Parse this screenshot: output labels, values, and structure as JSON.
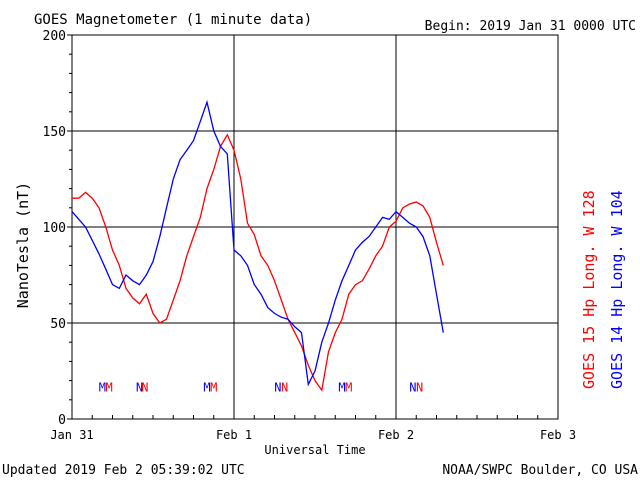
{
  "header": {
    "title": "GOES Magnetometer (1 minute data)",
    "begin": "Begin:  2019 Jan 31 0000 UTC"
  },
  "footer": {
    "updated": "Updated 2019 Feb  2 05:39:02 UTC",
    "source": "NOAA/SWPC Boulder, CO USA"
  },
  "colors": {
    "goes15": "#ff0000",
    "goes14": "#0000ff",
    "axis": "#000000",
    "grid": "#000000",
    "background": "#ffffff"
  },
  "chart_data": {
    "type": "line",
    "title": "GOES Magnetometer (1 minute data)",
    "xlabel": "Universal Time",
    "ylabel": "NanoTesla (nT)",
    "ylim": [
      0,
      200
    ],
    "xlim": [
      "2019-01-31 00:00",
      "2019-02-03 00:00"
    ],
    "x_ticks": [
      "Jan 31",
      "Feb 1",
      "Feb 2",
      "Feb 3"
    ],
    "y_ticks": [
      0,
      50,
      100,
      150,
      200
    ],
    "grid": true,
    "legend": [
      {
        "name": "GOES 15 Hp  Long. W 128",
        "color": "#ff0000"
      },
      {
        "name": "GOES 14 Hp  Long. W 104",
        "color": "#0000ff"
      }
    ],
    "series": [
      {
        "name": "GOES 15 Hp  Long. W 128",
        "color": "#ff0000",
        "x_hours": [
          0,
          1,
          2,
          3,
          4,
          5,
          6,
          7,
          8,
          9,
          10,
          11,
          12,
          13,
          14,
          15,
          16,
          17,
          18,
          19,
          20,
          21,
          22,
          23,
          24,
          25,
          26,
          27,
          28,
          29,
          30,
          31,
          32,
          33,
          34,
          35,
          36,
          37,
          38,
          39,
          40,
          41,
          42,
          43,
          44,
          45,
          46,
          47,
          48,
          49,
          50,
          51,
          52,
          53,
          54,
          55
        ],
        "values": [
          115,
          115,
          118,
          115,
          110,
          100,
          88,
          80,
          68,
          63,
          60,
          65,
          55,
          50,
          52,
          62,
          72,
          85,
          95,
          105,
          120,
          130,
          142,
          148,
          140,
          125,
          102,
          96,
          85,
          80,
          72,
          62,
          52,
          45,
          38,
          28,
          20,
          15,
          35,
          45,
          52,
          65,
          70,
          72,
          78,
          85,
          90,
          100,
          103,
          110,
          112,
          113,
          111,
          105,
          92,
          80
        ]
      },
      {
        "name": "GOES 14 Hp  Long. W 104",
        "color": "#0000ff",
        "x_hours": [
          0,
          1,
          2,
          3,
          4,
          5,
          6,
          7,
          8,
          9,
          10,
          11,
          12,
          13,
          14,
          15,
          16,
          17,
          18,
          19,
          20,
          21,
          22,
          23,
          24,
          25,
          26,
          27,
          28,
          29,
          30,
          31,
          32,
          33,
          34,
          35,
          36,
          37,
          38,
          39,
          40,
          41,
          42,
          43,
          44,
          45,
          46,
          47,
          48,
          49,
          50,
          51,
          52,
          53,
          54,
          55
        ],
        "values": [
          108,
          104,
          100,
          93,
          86,
          78,
          70,
          68,
          75,
          72,
          70,
          75,
          82,
          95,
          110,
          125,
          135,
          140,
          145,
          155,
          165,
          150,
          142,
          138,
          88,
          85,
          80,
          70,
          65,
          58,
          55,
          53,
          52,
          48,
          45,
          18,
          25,
          40,
          50,
          62,
          72,
          80,
          88,
          92,
          95,
          100,
          105,
          104,
          108,
          105,
          102,
          100,
          95,
          85,
          65,
          45
        ]
      }
    ],
    "markers": [
      {
        "label": "M",
        "x_hours": 4.5,
        "series": "GOES 14 Hp  Long. W 104",
        "color": "#0000ff"
      },
      {
        "label": "M",
        "x_hours": 5.5,
        "series": "GOES 15 Hp  Long. W 128",
        "color": "#ff0000"
      },
      {
        "label": "N",
        "x_hours": 10.0,
        "series": "GOES 14 Hp  Long. W 104",
        "color": "#0000ff"
      },
      {
        "label": "N",
        "x_hours": 10.8,
        "series": "GOES 15 Hp  Long. W 128",
        "color": "#ff0000"
      },
      {
        "label": "M",
        "x_hours": 20.0,
        "series": "GOES 14 Hp  Long. W 104",
        "color": "#0000ff"
      },
      {
        "label": "M",
        "x_hours": 21.0,
        "series": "GOES 15 Hp  Long. W 128",
        "color": "#ff0000"
      },
      {
        "label": "N",
        "x_hours": 30.5,
        "series": "GOES 14 Hp  Long. W 104",
        "color": "#0000ff"
      },
      {
        "label": "N",
        "x_hours": 31.5,
        "series": "GOES 15 Hp  Long. W 128",
        "color": "#ff0000"
      },
      {
        "label": "M",
        "x_hours": 40.0,
        "series": "GOES 14 Hp  Long. W 104",
        "color": "#0000ff"
      },
      {
        "label": "M",
        "x_hours": 41.0,
        "series": "GOES 15 Hp  Long. W 128",
        "color": "#ff0000"
      },
      {
        "label": "N",
        "x_hours": 50.5,
        "series": "GOES 14 Hp  Long. W 104",
        "color": "#0000ff"
      },
      {
        "label": "N",
        "x_hours": 51.5,
        "series": "GOES 15 Hp  Long. W 128",
        "color": "#ff0000"
      }
    ],
    "marker_value": 17
  }
}
